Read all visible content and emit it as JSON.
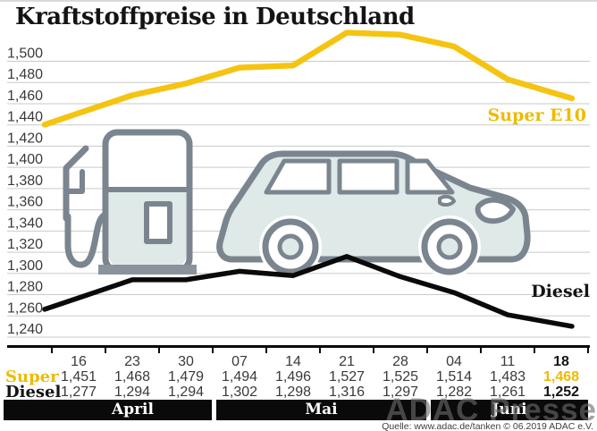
{
  "title": "Kraftstoffpreise in Deutschland",
  "chart_data": {
    "type": "line",
    "title": "Kraftstoffpreise in Deutschland",
    "x_dates": [
      "16",
      "23",
      "30",
      "07",
      "14",
      "21",
      "28",
      "04",
      "11",
      "18"
    ],
    "months": [
      {
        "label": "April",
        "span": 3
      },
      {
        "label": "Mai",
        "span": 4
      },
      {
        "label": "Juni",
        "span": 3
      }
    ],
    "series": [
      {
        "name": "Super E10",
        "color": "#f5c411",
        "values": [
          1451,
          1468,
          1479,
          1494,
          1496,
          1527,
          1525,
          1514,
          1483,
          1468
        ]
      },
      {
        "name": "Diesel",
        "color": "#0a0a0a",
        "values": [
          1277,
          1294,
          1294,
          1302,
          1298,
          1316,
          1297,
          1282,
          1261,
          1252
        ]
      }
    ],
    "yticks": [
      1500,
      1480,
      1460,
      1440,
      1420,
      1400,
      1380,
      1360,
      1340,
      1320,
      1300,
      1280,
      1260,
      1240
    ],
    "ylim": [
      1240,
      1500
    ],
    "grid": "horizontal",
    "legend_position": "inline-right"
  },
  "labels": {
    "super_line": "Super E10",
    "diesel_line": "Diesel",
    "super_row": "Super",
    "diesel_row": "Diesel"
  },
  "footer": {
    "watermark": "ADAC Presse",
    "source": "Quelle: www.adac.de/tanken   © 06.2019  ADAC e.V."
  },
  "colors": {
    "adac_yellow": "#f5c411",
    "yellow_text": "#edbb00",
    "diesel_black": "#0a0a0a",
    "grid_gray": "#c9c9c9",
    "illustration_outline": "#7b858f",
    "illustration_fill": "#dee9e8"
  }
}
